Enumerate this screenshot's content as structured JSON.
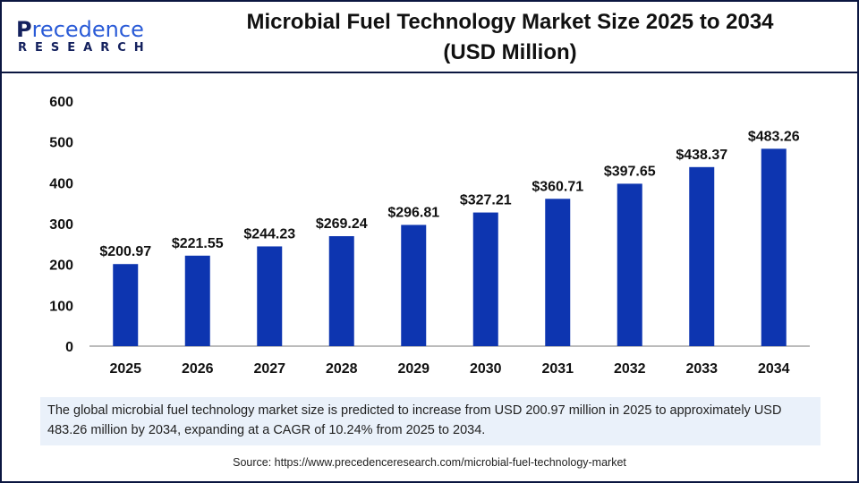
{
  "header": {
    "logo_text": "Precedence RESEARCH",
    "title_line1": "Microbial Fuel Technology Market Size 2025 to 2034",
    "title_line2": "(USD Million)"
  },
  "chart_data": {
    "type": "bar",
    "title": "Microbial Fuel Technology Market Size 2025 to 2034 (USD Million)",
    "categories": [
      "2025",
      "2026",
      "2027",
      "2028",
      "2029",
      "2030",
      "2031",
      "2032",
      "2033",
      "2034"
    ],
    "values": [
      200.97,
      221.55,
      244.23,
      269.24,
      296.81,
      327.21,
      360.71,
      397.65,
      438.37,
      483.26
    ],
    "data_labels": [
      "$200.97",
      "$221.55",
      "$244.23",
      "$269.24",
      "$296.81",
      "$327.21",
      "$360.71",
      "$397.65",
      "$438.37",
      "$483.26"
    ],
    "ylim": [
      0,
      600
    ],
    "yticks": [
      "0",
      "100",
      "200",
      "300",
      "400",
      "500",
      "600"
    ],
    "grid": false,
    "bar_color": "#0d35b0"
  },
  "description": "The global microbial fuel technology market size is predicted to increase from USD 200.97 million in 2025 to approximately USD 483.26 million by 2034, expanding at a CAGR of 10.24% from 2025 to 2034.",
  "source": "Source: https://www.precedenceresearch.com/microbial-fuel-technology-market"
}
